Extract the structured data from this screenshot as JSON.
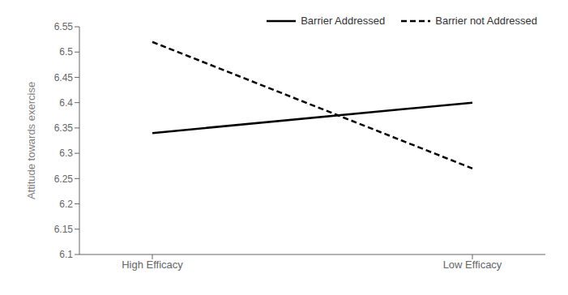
{
  "chart_data": {
    "type": "line",
    "categories": [
      "High Efficacy",
      "Low Efficacy"
    ],
    "series": [
      {
        "name": "Barrier Addressed",
        "color": "#000000",
        "line_style": "solid",
        "values": [
          6.34,
          6.4
        ]
      },
      {
        "name": "Barrier not Addressed",
        "color": "#000000",
        "line_style": "dashed",
        "values": [
          6.52,
          6.27
        ]
      }
    ],
    "ylabel": "Attitude towards exercise",
    "ylim": [
      6.1,
      6.55
    ],
    "yticks": [
      6.1,
      6.15,
      6.2,
      6.25,
      6.3,
      6.35,
      6.4,
      6.45,
      6.5,
      6.55
    ],
    "legend": "upper right",
    "grid": false
  }
}
